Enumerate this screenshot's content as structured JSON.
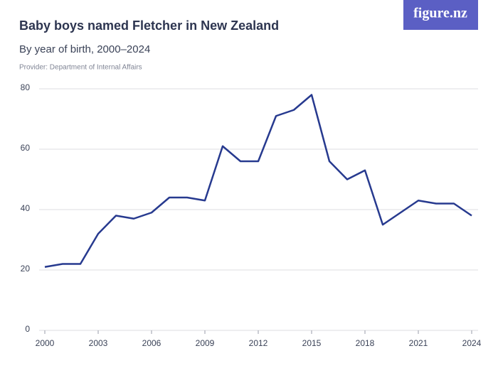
{
  "chart_data": {
    "type": "line",
    "title": "Baby boys named Fletcher in New Zealand",
    "subtitle": "By year of birth, 2000–2024",
    "source": "Provider: Department of Internal Affairs",
    "logo": "figure.nz",
    "x": [
      2000,
      2001,
      2002,
      2003,
      2004,
      2005,
      2006,
      2007,
      2008,
      2009,
      2010,
      2011,
      2012,
      2013,
      2014,
      2015,
      2016,
      2017,
      2018,
      2019,
      2020,
      2021,
      2022,
      2023,
      2024
    ],
    "values": [
      21,
      22,
      22,
      32,
      38,
      37,
      39,
      44,
      44,
      43,
      61,
      56,
      56,
      71,
      73,
      78,
      56,
      50,
      53,
      35,
      39,
      43,
      42,
      42,
      38
    ],
    "color": "#273a8f",
    "xlim": [
      2000,
      2024
    ],
    "xticks": [
      2000,
      2003,
      2006,
      2009,
      2012,
      2015,
      2018,
      2021,
      2024
    ],
    "ylim": [
      0,
      80
    ],
    "yticks": [
      0,
      20,
      40,
      60,
      80
    ],
    "grid": true
  }
}
